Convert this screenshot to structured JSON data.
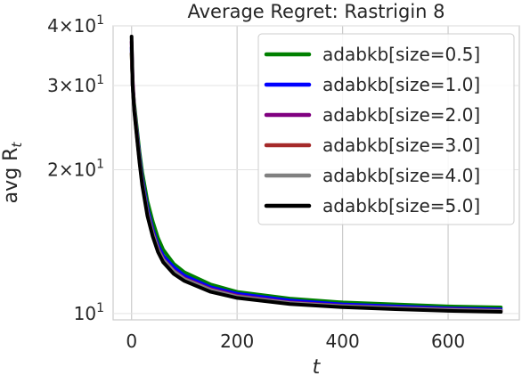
{
  "chart_data": {
    "type": "line",
    "title": "Average Regret: Rastrigin 8",
    "xlabel": "t",
    "ylabel": "avg R",
    "ylabel_subscript": "t",
    "xlim": [
      -35,
      735
    ],
    "ylim": [
      9.7,
      40
    ],
    "y_scale": "log",
    "grid": true,
    "legend_position": "upper right",
    "x_ticks": [
      0,
      200,
      400,
      600
    ],
    "x_tick_labels": [
      "0",
      "200",
      "400",
      "600"
    ],
    "y_ticks": [
      10,
      20,
      30,
      40
    ],
    "y_tick_labels": [
      {
        "mant": "10",
        "exp": "1"
      },
      {
        "mant": "2×10",
        "exp": "1"
      },
      {
        "mant": "3×10",
        "exp": "1"
      },
      {
        "mant": "4×10",
        "exp": "1"
      }
    ],
    "x": [
      0,
      2,
      5,
      10,
      15,
      20,
      30,
      40,
      50,
      60,
      80,
      100,
      150,
      200,
      300,
      400,
      500,
      600,
      700
    ],
    "series": [
      {
        "name": "adabkb[size=0.5]",
        "color": "#008000",
        "values": [
          35,
          30,
          27.5,
          24.5,
          21.8,
          19.8,
          17.2,
          15.6,
          14.4,
          13.6,
          12.7,
          12.2,
          11.5,
          11.1,
          10.75,
          10.55,
          10.45,
          10.35,
          10.3
        ]
      },
      {
        "name": "adabkb[size=1.0]",
        "color": "#0000ff",
        "values": [
          36,
          30,
          27,
          24,
          21.3,
          19.2,
          16.6,
          15.0,
          13.9,
          13.2,
          12.5,
          12.0,
          11.35,
          11.0,
          10.65,
          10.45,
          10.35,
          10.25,
          10.2
        ]
      },
      {
        "name": "adabkb[size=2.0]",
        "color": "#800080",
        "values": [
          37,
          31,
          27,
          23.8,
          21.0,
          18.9,
          16.3,
          14.8,
          13.7,
          13.0,
          12.3,
          11.85,
          11.25,
          10.9,
          10.55,
          10.38,
          10.28,
          10.2,
          10.15
        ]
      },
      {
        "name": "adabkb[size=3.0]",
        "color": "#a52a2a",
        "values": [
          35,
          30,
          26.8,
          23.6,
          20.9,
          18.8,
          16.2,
          14.7,
          13.6,
          12.95,
          12.25,
          11.8,
          11.2,
          10.85,
          10.52,
          10.36,
          10.26,
          10.18,
          10.13
        ]
      },
      {
        "name": "adabkb[size=4.0]",
        "color": "#808080",
        "values": [
          36,
          30,
          26.8,
          23.6,
          20.9,
          18.8,
          16.2,
          14.7,
          13.6,
          12.95,
          12.25,
          11.8,
          11.2,
          10.85,
          10.52,
          10.36,
          10.26,
          10.18,
          10.13
        ]
      },
      {
        "name": "adabkb[size=5.0]",
        "color": "#000000",
        "values": [
          38,
          30,
          26.5,
          23.4,
          20.7,
          18.6,
          16.0,
          14.5,
          13.45,
          12.8,
          12.1,
          11.7,
          11.1,
          10.78,
          10.47,
          10.31,
          10.21,
          10.13,
          10.08
        ]
      }
    ]
  }
}
